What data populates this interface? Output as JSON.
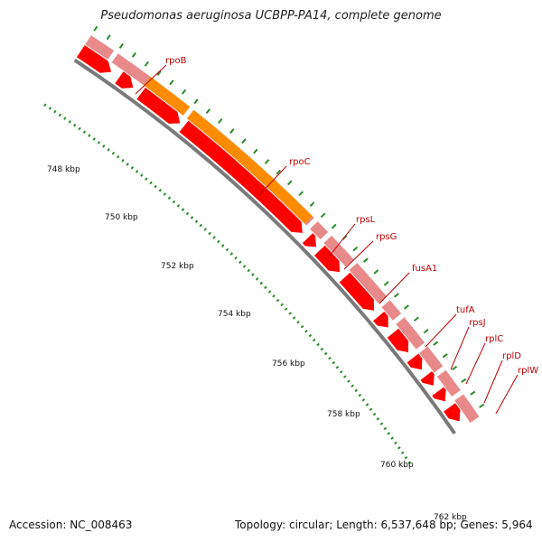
{
  "title": "Pseudomonas aeruginosa UCBPP-PA14, complete genome",
  "footer": {
    "accession": "Accession: NC_008463",
    "summary": "Topology: circular; Length: 6,537,648 bp; Genes: 5,964"
  },
  "colors": {
    "track_light": "#e88a8a",
    "track_red": "#ff0000",
    "track_orange": "#ff8c00",
    "backbone": "#7a7a7a",
    "tick": "#2a8a2a",
    "gene_label": "#c00000"
  },
  "kbp_labels": [
    "748 kbp",
    "750 kbp",
    "752 kbp",
    "754 kbp",
    "756 kbp",
    "758 kbp",
    "760 kbp",
    "762 kbp"
  ],
  "genes": [
    "rpoB",
    "rpoC",
    "rpsL",
    "rpsG",
    "fusA1",
    "tufA",
    "rpsJ",
    "rplC",
    "rplD",
    "rplW"
  ]
}
